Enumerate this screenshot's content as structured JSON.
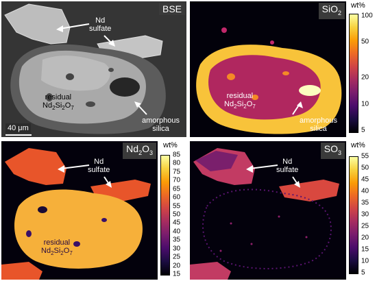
{
  "panels": {
    "bse": {
      "label": "BSE",
      "annotations": {
        "nd_sulfate": [
          "Nd",
          "sulfate"
        ],
        "residual": [
          "residual",
          "Nd",
          "2",
          "Si",
          "2",
          "O",
          "7"
        ],
        "amorphous": [
          "amorphous",
          "silica"
        ]
      },
      "scale_bar": "40 μm"
    },
    "sio2": {
      "label_main": "SiO",
      "label_sub": "2",
      "annotations": {
        "residual": [
          "residual",
          "Nd",
          "2",
          "Si",
          "2",
          "O",
          "7"
        ],
        "amorphous": [
          "amorphous",
          "silica"
        ]
      },
      "colorbar": {
        "unit": "wt%",
        "scale": "log",
        "ticks": [
          "100",
          "50",
          "20",
          "10",
          "5"
        ]
      }
    },
    "nd2o3": {
      "label_main1": "Nd",
      "label_sub1": "2",
      "label_main2": "O",
      "label_sub2": "3",
      "annotations": {
        "nd_sulfate": [
          "Nd",
          "sulfate"
        ],
        "residual": [
          "residual",
          "Nd",
          "2",
          "Si",
          "2",
          "O",
          "7"
        ]
      },
      "colorbar": {
        "unit": "wt%",
        "scale": "linear",
        "ticks": [
          "85",
          "80",
          "75",
          "70",
          "65",
          "60",
          "55",
          "50",
          "45",
          "40",
          "35",
          "30",
          "25",
          "20",
          "15"
        ]
      }
    },
    "so3": {
      "label_main": "SO",
      "label_sub": "3",
      "annotations": {
        "nd_sulfate": [
          "Nd",
          "sulfate"
        ]
      },
      "colorbar": {
        "unit": "wt%",
        "scale": "linear",
        "ticks": [
          "55",
          "50",
          "45",
          "40",
          "35",
          "30",
          "25",
          "20",
          "15",
          "10",
          "5"
        ]
      }
    }
  }
}
